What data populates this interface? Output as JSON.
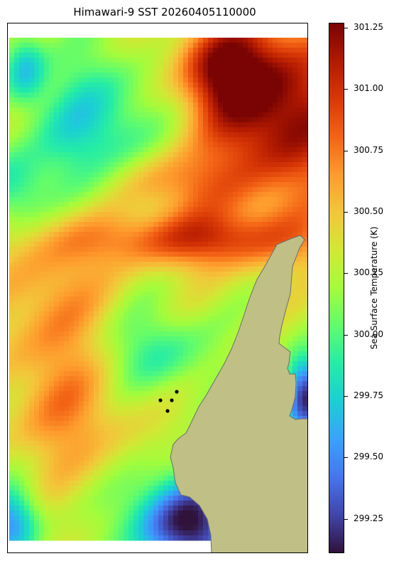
{
  "title": "Himawari-9 SST 20260405110000",
  "colorbar": {
    "label": "Sea Surface Temperature (K)",
    "min": 299.11,
    "max": 301.27,
    "ticks": [
      "299.25",
      "299.50",
      "299.75",
      "300.00",
      "300.25",
      "300.50",
      "300.75",
      "301.00",
      "301.25"
    ],
    "colormap": [
      "#30123b",
      "#4145ab",
      "#4675ed",
      "#39a2fc",
      "#1bcfd4",
      "#24eca6",
      "#61fc6c",
      "#a4fc3b",
      "#d1e834",
      "#f3c63a",
      "#fe9b2d",
      "#f36315",
      "#d93806",
      "#b11901",
      "#7a0403"
    ]
  },
  "land_color": "#bfbf86",
  "coast_color": "#6e6e6e",
  "markers": {
    "color": "#000000",
    "count": 4
  }
}
